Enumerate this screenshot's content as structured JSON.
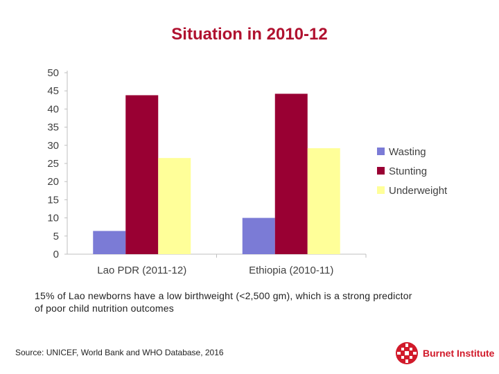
{
  "title": "Situation in 2010-12",
  "chart_data": {
    "type": "bar",
    "categories": [
      "Lao PDR (2011-12)",
      "Ethiopia (2010-11)"
    ],
    "series": [
      {
        "name": "Wasting",
        "values": [
          6.4,
          10
        ],
        "color": "#7b7bd6"
      },
      {
        "name": "Stunting",
        "values": [
          43.8,
          44.2
        ],
        "color": "#990033"
      },
      {
        "name": "Underweight",
        "values": [
          26.5,
          29.2
        ],
        "color": "#ffff99"
      }
    ],
    "ylim": [
      0,
      50
    ],
    "yticks": [
      0,
      5,
      10,
      15,
      20,
      25,
      30,
      35,
      40,
      45,
      50
    ],
    "legend_position": "right",
    "xlabel": "",
    "ylabel": ""
  },
  "caption": "15% of Lao newborns have a low birthweight (<2,500 gm), which is a strong predictor of poor child nutrition outcomes",
  "source": "Source: UNICEF, World Bank and WHO Database, 2016",
  "logo": {
    "text": "Burnet Institute",
    "color": "#d11a2a"
  }
}
